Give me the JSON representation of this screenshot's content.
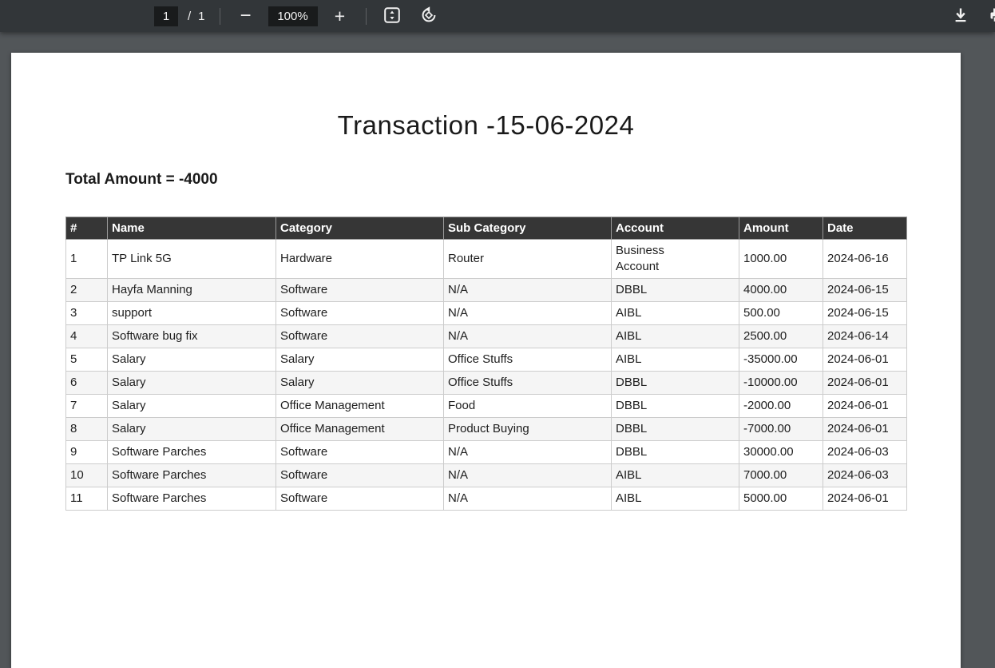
{
  "colors": {
    "toolbar_bg": "#323639",
    "toolbar_field_bg": "#191b1c",
    "viewer_bg": "#525659",
    "page_bg": "#ffffff",
    "header_bg": "#363636",
    "header_text": "#ffffff",
    "row_alt_bg": "#f5f5f5",
    "border": "#cccccc",
    "text": "#202020",
    "positive": "#1a8a28",
    "negative": "#ef2c19"
  },
  "toolbar": {
    "page_current": "1",
    "page_divider": "/",
    "page_total": "1",
    "zoom_out_glyph": "−",
    "zoom_level": "100%",
    "zoom_in_glyph": "+"
  },
  "document": {
    "title": "Transaction -15-06-2024",
    "total_line": "Total Amount = -4000"
  },
  "table": {
    "headers": [
      "#",
      "Name",
      "Category",
      "Sub Category",
      "Account",
      "Amount",
      "Date"
    ],
    "rows": [
      {
        "num": "1",
        "name": "TP Link 5G",
        "category": "Hardware",
        "sub_category": "Router",
        "account": "Business\nAccount",
        "amount": "1000.00",
        "date": "2024-06-16"
      },
      {
        "num": "2",
        "name": "Hayfa Manning",
        "category": "Software",
        "sub_category": "N/A",
        "account": "DBBL",
        "amount": "4000.00",
        "date": "2024-06-15"
      },
      {
        "num": "3",
        "name": "support",
        "category": "Software",
        "sub_category": "N/A",
        "account": "AIBL",
        "amount": "500.00",
        "date": "2024-06-15"
      },
      {
        "num": "4",
        "name": "Software bug fix",
        "category": "Software",
        "sub_category": "N/A",
        "account": "AIBL",
        "amount": "2500.00",
        "date": "2024-06-14"
      },
      {
        "num": "5",
        "name": "Salary",
        "category": "Salary",
        "sub_category": "Office Stuffs",
        "account": "AIBL",
        "amount": "-35000.00",
        "date": "2024-06-01"
      },
      {
        "num": "6",
        "name": "Salary",
        "category": "Salary",
        "sub_category": "Office Stuffs",
        "account": "DBBL",
        "amount": "-10000.00",
        "date": "2024-06-01"
      },
      {
        "num": "7",
        "name": "Salary",
        "category": "Office Management",
        "sub_category": "Food",
        "account": "DBBL",
        "amount": "-2000.00",
        "date": "2024-06-01"
      },
      {
        "num": "8",
        "name": "Salary",
        "category": "Office Management",
        "sub_category": "Product Buying",
        "account": "DBBL",
        "amount": "-7000.00",
        "date": "2024-06-01"
      },
      {
        "num": "9",
        "name": "Software Parches",
        "category": "Software",
        "sub_category": "N/A",
        "account": "DBBL",
        "amount": "30000.00",
        "date": "2024-06-03"
      },
      {
        "num": "10",
        "name": "Software Parches",
        "category": "Software",
        "sub_category": "N/A",
        "account": "AIBL",
        "amount": "7000.00",
        "date": "2024-06-03"
      },
      {
        "num": "11",
        "name": "Software Parches",
        "category": "Software",
        "sub_category": "N/A",
        "account": "AIBL",
        "amount": "5000.00",
        "date": "2024-06-01"
      }
    ]
  }
}
